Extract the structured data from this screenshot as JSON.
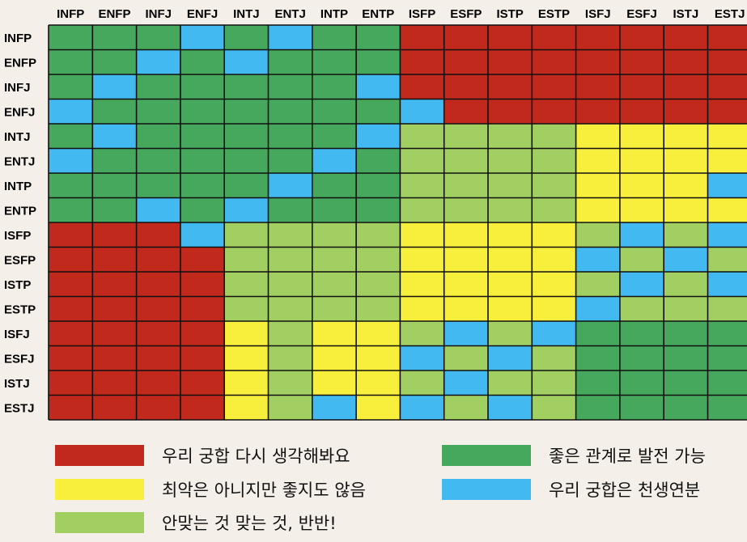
{
  "chart_data": {
    "type": "heatmap",
    "title": "",
    "columns": [
      "INFP",
      "ENFP",
      "INFJ",
      "ENFJ",
      "INTJ",
      "ENTJ",
      "INTP",
      "ENTP",
      "ISFP",
      "ESFP",
      "ISTP",
      "ESTP",
      "ISFJ",
      "ESFJ",
      "ISTJ",
      "ESTJ"
    ],
    "rows": [
      "INFP",
      "ENFP",
      "INFJ",
      "ENFJ",
      "INTJ",
      "ENTJ",
      "INTP",
      "ENTP",
      "ISFP",
      "ESFP",
      "ISTP",
      "ESTP",
      "ISFJ",
      "ESFJ",
      "ISTJ",
      "ESTJ"
    ],
    "categories": [
      {
        "code": "R",
        "label": "우리 궁합 다시 생각해봐요",
        "color": "#c0291c"
      },
      {
        "code": "G",
        "label": "좋은 관계로 발전 가능",
        "color": "#46a85c"
      },
      {
        "code": "Y",
        "label": "최악은 아니지만 좋지도 않음",
        "color": "#f8ee3c"
      },
      {
        "code": "B",
        "label": "우리 궁합은 천생연분",
        "color": "#42b9f1"
      },
      {
        "code": "L",
        "label": "안맞는 것 맞는 것, 반반!",
        "color": "#a2cf62"
      }
    ],
    "legend_order": [
      "R",
      "G",
      "Y",
      "B",
      "L"
    ],
    "grid": [
      [
        "G",
        "G",
        "G",
        "B",
        "G",
        "B",
        "G",
        "G",
        "R",
        "R",
        "R",
        "R",
        "R",
        "R",
        "R",
        "R"
      ],
      [
        "G",
        "G",
        "B",
        "G",
        "B",
        "G",
        "G",
        "G",
        "R",
        "R",
        "R",
        "R",
        "R",
        "R",
        "R",
        "R"
      ],
      [
        "G",
        "B",
        "G",
        "G",
        "G",
        "G",
        "G",
        "B",
        "R",
        "R",
        "R",
        "R",
        "R",
        "R",
        "R",
        "R"
      ],
      [
        "B",
        "G",
        "G",
        "G",
        "G",
        "G",
        "G",
        "G",
        "B",
        "R",
        "R",
        "R",
        "R",
        "R",
        "R",
        "R"
      ],
      [
        "G",
        "B",
        "G",
        "G",
        "G",
        "G",
        "G",
        "B",
        "L",
        "L",
        "L",
        "L",
        "Y",
        "Y",
        "Y",
        "Y"
      ],
      [
        "B",
        "G",
        "G",
        "G",
        "G",
        "G",
        "B",
        "G",
        "L",
        "L",
        "L",
        "L",
        "Y",
        "Y",
        "Y",
        "Y"
      ],
      [
        "G",
        "G",
        "G",
        "G",
        "G",
        "B",
        "G",
        "G",
        "L",
        "L",
        "L",
        "L",
        "Y",
        "Y",
        "Y",
        "B"
      ],
      [
        "G",
        "G",
        "B",
        "G",
        "B",
        "G",
        "G",
        "G",
        "L",
        "L",
        "L",
        "L",
        "Y",
        "Y",
        "Y",
        "Y"
      ],
      [
        "R",
        "R",
        "R",
        "B",
        "L",
        "L",
        "L",
        "L",
        "Y",
        "Y",
        "Y",
        "Y",
        "L",
        "B",
        "L",
        "B"
      ],
      [
        "R",
        "R",
        "R",
        "R",
        "L",
        "L",
        "L",
        "L",
        "Y",
        "Y",
        "Y",
        "Y",
        "B",
        "L",
        "B",
        "L"
      ],
      [
        "R",
        "R",
        "R",
        "R",
        "L",
        "L",
        "L",
        "L",
        "Y",
        "Y",
        "Y",
        "Y",
        "L",
        "B",
        "L",
        "B"
      ],
      [
        "R",
        "R",
        "R",
        "R",
        "L",
        "L",
        "L",
        "L",
        "Y",
        "Y",
        "Y",
        "Y",
        "B",
        "L",
        "L",
        "L"
      ],
      [
        "R",
        "R",
        "R",
        "R",
        "Y",
        "L",
        "Y",
        "Y",
        "L",
        "B",
        "L",
        "B",
        "G",
        "G",
        "G",
        "G"
      ],
      [
        "R",
        "R",
        "R",
        "R",
        "Y",
        "L",
        "Y",
        "Y",
        "B",
        "L",
        "B",
        "L",
        "G",
        "G",
        "G",
        "G"
      ],
      [
        "R",
        "R",
        "R",
        "R",
        "Y",
        "L",
        "Y",
        "Y",
        "L",
        "B",
        "L",
        "L",
        "G",
        "G",
        "G",
        "G"
      ],
      [
        "R",
        "R",
        "R",
        "R",
        "Y",
        "L",
        "B",
        "Y",
        "B",
        "L",
        "B",
        "L",
        "G",
        "G",
        "G",
        "G"
      ]
    ]
  }
}
